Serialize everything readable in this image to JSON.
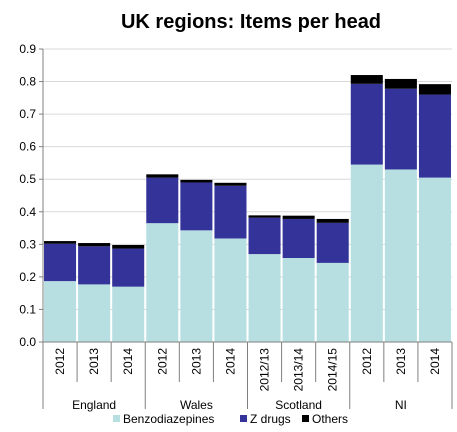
{
  "chart_data": {
    "type": "bar",
    "stacked": true,
    "title": "UK regions: Items per head",
    "xlabel": "",
    "ylabel": "",
    "ylim": [
      0,
      0.9
    ],
    "yticks": [
      "0.0",
      "0.1",
      "0.2",
      "0.3",
      "0.4",
      "0.5",
      "0.6",
      "0.7",
      "0.8",
      "0.9"
    ],
    "grid": "horizontal",
    "legend_position": "bottom",
    "categories": [
      "2012",
      "2013",
      "2014",
      "2012",
      "2013",
      "2014",
      "2012/13",
      "2013/14",
      "2014/15",
      "2012",
      "2013",
      "2014"
    ],
    "groups": [
      {
        "label": "England",
        "size": 3
      },
      {
        "label": "Wales",
        "size": 3
      },
      {
        "label": "Scotland",
        "size": 3
      },
      {
        "label": "NI",
        "size": 3
      }
    ],
    "series": [
      {
        "name": "Benzodiazepines",
        "color": "#b7dfe1",
        "values": [
          0.187,
          0.177,
          0.17,
          0.365,
          0.343,
          0.318,
          0.27,
          0.258,
          0.243,
          0.545,
          0.53,
          0.505
        ]
      },
      {
        "name": "Z drugs",
        "color": "#33339a",
        "values": [
          0.115,
          0.117,
          0.117,
          0.14,
          0.147,
          0.162,
          0.112,
          0.12,
          0.123,
          0.248,
          0.248,
          0.255
        ]
      },
      {
        "name": "Others",
        "color": "#000000",
        "values": [
          0.008,
          0.01,
          0.011,
          0.01,
          0.008,
          0.009,
          0.007,
          0.01,
          0.012,
          0.027,
          0.03,
          0.032
        ]
      }
    ]
  }
}
